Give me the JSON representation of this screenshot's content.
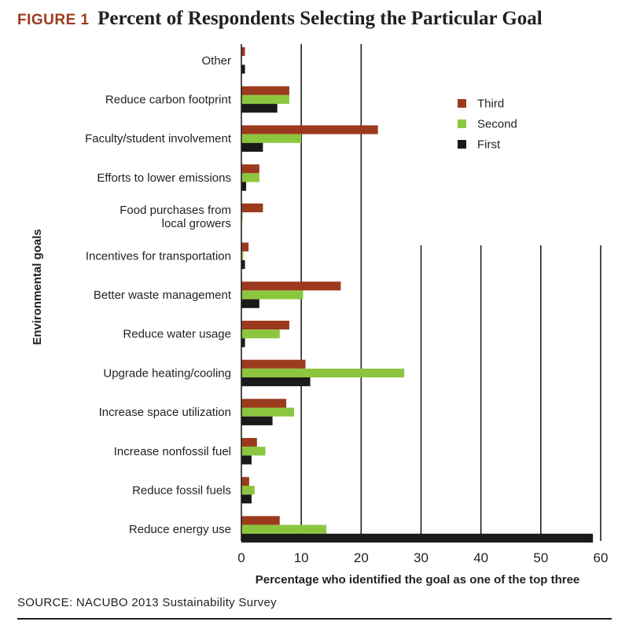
{
  "figure": {
    "label": "FIGURE 1",
    "title": "Percent of Respondents Selecting the Particular Goal",
    "source": "SOURCE: NACUBO 2013 Sustainability Survey"
  },
  "colors": {
    "label": "#9c3a1e",
    "Third": "#9c3a1e",
    "Second": "#8cc63f",
    "First": "#1a1a1a",
    "axis": "#231f20"
  },
  "chart_data": {
    "type": "bar",
    "orientation": "horizontal",
    "title": "Percent of Respondents Selecting the Particular Goal",
    "xlabel": "Percentage who identified the goal as one of the top three",
    "ylabel": "Environmental goals",
    "xlim": [
      0,
      60
    ],
    "xticks": [
      0,
      10,
      20,
      30,
      40,
      50,
      60
    ],
    "legend_position": "top-right",
    "categories": [
      "Other",
      "Reduce carbon footprint",
      "Faculty/student involvement",
      "Efforts to lower emissions",
      "Food purchases from local growers",
      "Incentives for transportation",
      "Better waste management",
      "Reduce water usage",
      "Upgrade heating/cooling",
      "Increase space utilization",
      "Increase nonfossil fuel",
      "Reduce fossil fuels",
      "Reduce energy use"
    ],
    "category_lines": [
      [
        "Other"
      ],
      [
        "Reduce carbon footprint"
      ],
      [
        "Faculty/student involvement"
      ],
      [
        "Efforts to lower emissions"
      ],
      [
        "Food purchases from",
        "local growers"
      ],
      [
        "Incentives for transportation"
      ],
      [
        "Better waste management"
      ],
      [
        "Reduce water usage"
      ],
      [
        "Upgrade heating/cooling"
      ],
      [
        "Increase space utilization"
      ],
      [
        "Increase nonfossil fuel"
      ],
      [
        "Reduce fossil fuels"
      ],
      [
        "Reduce energy use"
      ]
    ],
    "series": [
      {
        "name": "Third",
        "values": [
          0.6,
          8.0,
          22.8,
          3.0,
          3.6,
          1.2,
          16.6,
          8.0,
          10.7,
          7.5,
          2.6,
          1.3,
          6.4
        ]
      },
      {
        "name": "Second",
        "values": [
          0.0,
          8.0,
          10.0,
          3.0,
          0.2,
          0.3,
          10.3,
          6.4,
          27.2,
          8.8,
          4.0,
          2.2,
          14.2
        ]
      },
      {
        "name": "First",
        "values": [
          0.6,
          6.0,
          3.6,
          0.8,
          0.0,
          0.6,
          3.0,
          0.6,
          11.5,
          5.2,
          1.7,
          1.7,
          58.7
        ]
      }
    ]
  }
}
